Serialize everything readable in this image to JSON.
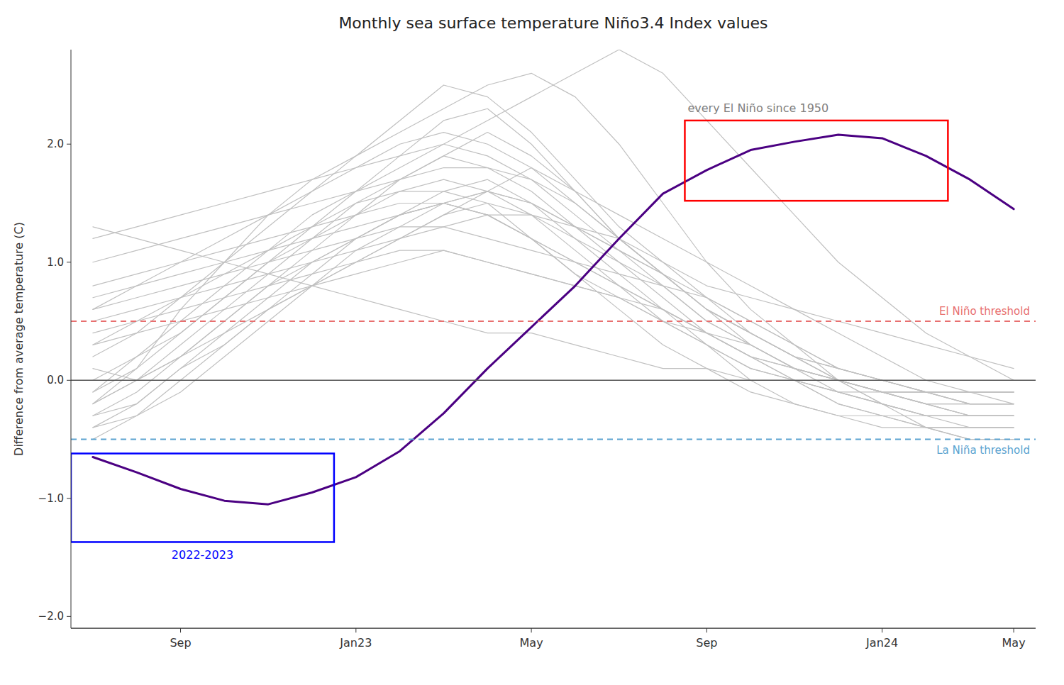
{
  "chart_data": {
    "type": "line",
    "title": "Monthly sea surface temperature Niño3.4 Index values",
    "ylabel": "Difference from average temperature (C)",
    "categories": [
      null,
      null,
      "Sep",
      null,
      null,
      null,
      "Jan23",
      null,
      null,
      null,
      "May",
      null,
      null,
      null,
      "Sep",
      null,
      null,
      null,
      "Jan24",
      null,
      null,
      "May"
    ],
    "ylim": [
      -2.1,
      2.8
    ],
    "yticks": [
      {
        "value": -2.0,
        "label": "−2.0"
      },
      {
        "value": -1.0,
        "label": "−1.0"
      },
      {
        "value": 0.0,
        "label": "0.0"
      },
      {
        "value": 1.0,
        "label": "1.0"
      },
      {
        "value": 2.0,
        "label": "2.0"
      }
    ],
    "grid": false,
    "series": [
      {
        "color": "#c0c0c0",
        "values": [
          -0.2,
          0.1,
          0.6,
          1.0,
          1.4,
          1.7,
          1.9,
          2.1,
          2.3,
          2.5,
          2.6,
          2.4,
          2.0,
          1.5,
          1.0,
          0.6,
          0.3,
          0.0,
          -0.2,
          -0.4,
          -0.5,
          -0.5
        ]
      },
      {
        "color": "#c0c0c0",
        "values": [
          0.6,
          0.7,
          0.8,
          0.9,
          1.0,
          1.1,
          1.2,
          1.3,
          1.3,
          1.4,
          1.4,
          1.3,
          1.2,
          1.0,
          0.8,
          0.7,
          0.6,
          0.5,
          0.4,
          0.3,
          0.2,
          0.1
        ]
      },
      {
        "color": "#c0c0c0",
        "values": [
          -0.1,
          0.2,
          0.5,
          0.8,
          1.1,
          1.4,
          1.6,
          1.8,
          2.0,
          2.2,
          2.4,
          2.6,
          2.8,
          2.6,
          2.2,
          1.8,
          1.4,
          1.0,
          0.7,
          0.4,
          0.2,
          0.0
        ]
      },
      {
        "color": "#c0c0c0",
        "values": [
          0.1,
          0.0,
          0.2,
          0.4,
          0.6,
          0.8,
          1.0,
          1.2,
          1.4,
          1.6,
          1.8,
          1.6,
          1.4,
          1.2,
          1.0,
          0.8,
          0.6,
          0.4,
          0.2,
          0.0,
          -0.1,
          -0.2
        ]
      },
      {
        "color": "#c0c0c0",
        "values": [
          0.3,
          0.5,
          0.7,
          0.9,
          1.1,
          1.3,
          1.6,
          1.9,
          2.2,
          2.3,
          2.0,
          1.6,
          1.2,
          0.9,
          0.6,
          0.4,
          0.2,
          0.1,
          0.0,
          -0.1,
          -0.1,
          -0.1
        ]
      },
      {
        "color": "#c0c0c0",
        "values": [
          -0.3,
          -0.1,
          0.2,
          0.5,
          0.8,
          1.1,
          1.4,
          1.7,
          1.9,
          2.1,
          1.9,
          1.6,
          1.2,
          0.9,
          0.6,
          0.3,
          0.1,
          -0.1,
          -0.2,
          -0.3,
          -0.3,
          -0.3
        ]
      },
      {
        "color": "#c0c0c0",
        "values": [
          0.5,
          0.6,
          0.7,
          0.8,
          0.9,
          1.0,
          1.1,
          1.2,
          1.3,
          1.2,
          1.1,
          1.0,
          0.9,
          0.8,
          0.7,
          0.5,
          0.3,
          0.1,
          0.0,
          -0.1,
          -0.1,
          -0.1
        ]
      },
      {
        "color": "#c0c0c0",
        "values": [
          -0.5,
          -0.3,
          0.0,
          0.3,
          0.6,
          0.9,
          1.2,
          1.4,
          1.6,
          1.7,
          1.5,
          1.2,
          0.9,
          0.6,
          0.3,
          0.0,
          -0.2,
          -0.3,
          -0.4,
          -0.4,
          -0.4,
          -0.4
        ]
      },
      {
        "color": "#c0c0c0",
        "values": [
          1.0,
          1.1,
          1.2,
          1.3,
          1.4,
          1.5,
          1.6,
          1.7,
          1.8,
          1.8,
          1.7,
          1.5,
          1.2,
          0.9,
          0.6,
          0.4,
          0.2,
          0.1,
          0.0,
          -0.1,
          -0.2,
          -0.2
        ]
      },
      {
        "color": "#c0c0c0",
        "values": [
          0.2,
          0.4,
          0.7,
          1.0,
          1.3,
          1.6,
          1.9,
          2.2,
          2.5,
          2.4,
          2.1,
          1.7,
          1.3,
          1.0,
          0.7,
          0.4,
          0.2,
          0.0,
          -0.2,
          -0.3,
          -0.3,
          -0.3
        ]
      },
      {
        "color": "#c0c0c0",
        "values": [
          -0.2,
          0.0,
          0.3,
          0.6,
          0.9,
          1.2,
          1.5,
          1.7,
          1.9,
          1.8,
          1.6,
          1.3,
          1.0,
          0.7,
          0.4,
          0.2,
          0.0,
          -0.2,
          -0.3,
          -0.4,
          -0.4,
          -0.4
        ]
      },
      {
        "color": "#c0c0c0",
        "values": [
          0.8,
          0.9,
          1.0,
          1.1,
          1.2,
          1.3,
          1.4,
          1.5,
          1.5,
          1.4,
          1.2,
          1.0,
          0.8,
          0.6,
          0.4,
          0.2,
          0.1,
          0.0,
          -0.1,
          -0.2,
          -0.2,
          -0.2
        ]
      },
      {
        "color": "#c0c0c0",
        "values": [
          -0.4,
          -0.2,
          0.1,
          0.4,
          0.7,
          1.0,
          1.2,
          1.4,
          1.5,
          1.4,
          1.2,
          0.9,
          0.6,
          0.3,
          0.1,
          -0.1,
          -0.2,
          -0.3,
          -0.3,
          -0.3,
          -0.3,
          -0.3
        ]
      },
      {
        "color": "#c0c0c0",
        "values": [
          0.4,
          0.5,
          0.6,
          0.7,
          0.8,
          0.9,
          1.0,
          1.1,
          1.1,
          1.0,
          0.9,
          0.8,
          0.7,
          0.6,
          0.4,
          0.3,
          0.1,
          0.0,
          -0.1,
          -0.1,
          -0.2,
          -0.2
        ]
      },
      {
        "color": "#c0c0c0",
        "values": [
          -0.1,
          0.1,
          0.4,
          0.7,
          1.0,
          1.3,
          1.5,
          1.6,
          1.6,
          1.5,
          1.2,
          0.9,
          0.7,
          0.5,
          0.3,
          0.1,
          0.0,
          -0.2,
          -0.3,
          -0.4,
          -0.5,
          -0.5
        ]
      },
      {
        "color": "#c0c0c0",
        "values": [
          0.7,
          0.8,
          0.9,
          1.0,
          1.1,
          1.2,
          1.3,
          1.4,
          1.5,
          1.6,
          1.5,
          1.3,
          1.1,
          0.9,
          0.7,
          0.5,
          0.3,
          0.1,
          0.0,
          -0.1,
          -0.2,
          -0.2
        ]
      },
      {
        "color": "#c0c0c0",
        "values": [
          1.2,
          1.3,
          1.4,
          1.5,
          1.6,
          1.7,
          1.8,
          1.9,
          2.0,
          1.9,
          1.7,
          1.4,
          1.1,
          0.8,
          0.5,
          0.3,
          0.1,
          0.0,
          -0.1,
          -0.2,
          -0.3,
          -0.3
        ]
      },
      {
        "color": "#c0c0c0",
        "values": [
          0.0,
          0.2,
          0.4,
          0.7,
          1.0,
          1.2,
          1.4,
          1.6,
          1.7,
          1.6,
          1.4,
          1.1,
          0.8,
          0.5,
          0.3,
          0.1,
          0.0,
          -0.1,
          -0.2,
          -0.3,
          -0.4,
          -0.4
        ]
      },
      {
        "color": "#c0c0c0",
        "values": [
          -0.3,
          -0.2,
          0.1,
          0.3,
          0.6,
          0.8,
          1.0,
          1.2,
          1.4,
          1.5,
          1.4,
          1.2,
          1.0,
          0.8,
          0.5,
          0.3,
          0.1,
          0.0,
          -0.1,
          -0.2,
          -0.2,
          -0.2
        ]
      },
      {
        "color": "#c0c0c0",
        "values": [
          0.6,
          0.8,
          1.0,
          1.2,
          1.4,
          1.6,
          1.8,
          2.0,
          2.1,
          2.0,
          1.8,
          1.5,
          1.2,
          0.9,
          0.6,
          0.4,
          0.2,
          0.0,
          -0.1,
          -0.2,
          -0.3,
          -0.3
        ]
      },
      {
        "color": "#c0c0c0",
        "values": [
          -0.2,
          0.0,
          0.2,
          0.5,
          0.8,
          1.0,
          1.2,
          1.4,
          1.5,
          1.4,
          1.2,
          1.0,
          0.8,
          0.6,
          0.4,
          0.2,
          0.0,
          -0.1,
          -0.2,
          -0.3,
          -0.3,
          -0.3
        ]
      },
      {
        "color": "#c0c0c0",
        "values": [
          0.3,
          0.4,
          0.5,
          0.6,
          0.7,
          0.8,
          0.9,
          1.0,
          1.1,
          1.0,
          0.9,
          0.8,
          0.7,
          0.5,
          0.4,
          0.2,
          0.1,
          0.0,
          -0.1,
          -0.1,
          -0.1,
          -0.1
        ]
      },
      {
        "color": "#c0c0c0",
        "values": [
          1.3,
          1.2,
          1.1,
          1.0,
          0.9,
          0.8,
          0.7,
          0.6,
          0.5,
          0.4,
          0.4,
          0.3,
          0.2,
          0.1,
          0.1,
          0.0,
          0.0,
          -0.1,
          -0.1,
          -0.1,
          -0.1,
          -0.1
        ]
      },
      {
        "color": "#c0c0c0",
        "values": [
          -0.4,
          -0.3,
          -0.1,
          0.2,
          0.5,
          0.8,
          1.1,
          1.3,
          1.5,
          1.6,
          1.5,
          1.3,
          1.1,
          0.9,
          0.6,
          0.4,
          0.2,
          0.0,
          -0.1,
          -0.2,
          -0.3,
          -0.3
        ]
      },
      {
        "color": "#4b0082",
        "values": [
          -0.65,
          -0.78,
          -0.92,
          -1.02,
          -1.05,
          -0.95,
          -0.82,
          -0.6,
          -0.28,
          0.1,
          0.45,
          0.8,
          1.2,
          1.58,
          1.78,
          1.95,
          2.02,
          2.08,
          2.05,
          1.9,
          1.7,
          1.45
        ]
      }
    ],
    "zero_line": {
      "value": 0,
      "color": "#555555"
    },
    "thresholds": [
      {
        "value": 0.5,
        "label": "El Niño threshold",
        "color": "#e87070",
        "line_style": "dashed"
      },
      {
        "value": -0.5,
        "label": "La Niña threshold",
        "color": "#5ba3d0",
        "line_style": "dashed"
      }
    ],
    "highlights": [
      {
        "start_index": 14,
        "end_index": 19,
        "y": [
          1.52,
          2.2
        ],
        "color": "red",
        "label": "every El Niño since 1950",
        "label_color": "gray"
      },
      {
        "start_index": 0,
        "end_index": 5,
        "y": [
          -1.37,
          -0.62
        ],
        "color": "blue",
        "label": "2022-2023",
        "label_color": "blue"
      }
    ]
  }
}
